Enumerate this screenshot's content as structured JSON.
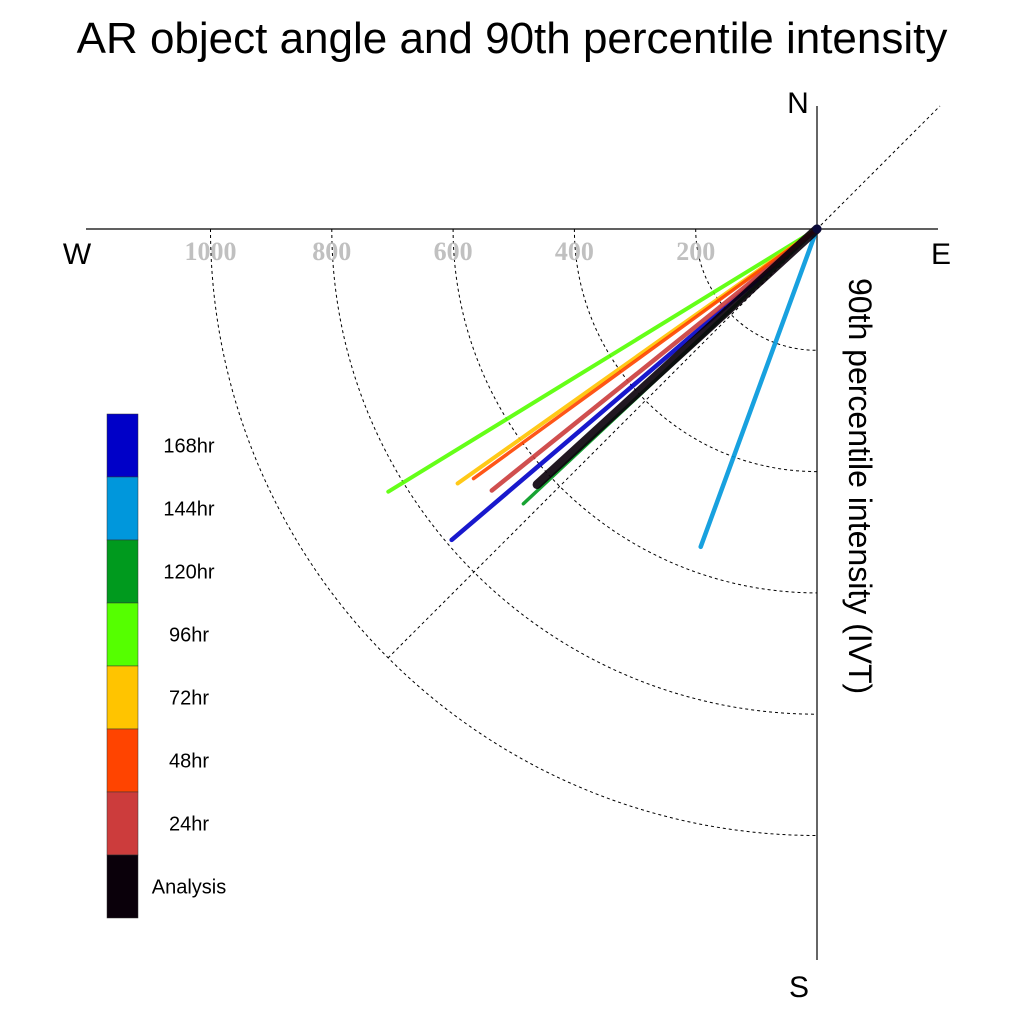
{
  "chart_data": {
    "type": "polar-vector",
    "title": "AR object angle and 90th percentile intensity",
    "ylabel": "90th percentile intensity (IVT)",
    "directions": {
      "n": "N",
      "s": "S",
      "e": "E",
      "w": "W"
    },
    "radial_ticks": [
      "200",
      "400",
      "600",
      "800",
      "1000"
    ],
    "radial_values": [
      200,
      400,
      600,
      800,
      1000
    ],
    "rmax": 1000,
    "grid": true,
    "series": [
      {
        "name": "168hr",
        "color": "#0000c8",
        "angle_deg_from_south": 49.6,
        "intensity": 791,
        "width": 4.5
      },
      {
        "name": "144hr",
        "color": "#0097dc",
        "angle_deg_from_south": 20.1,
        "intensity": 558,
        "width": 4.5
      },
      {
        "name": "120hr",
        "color": "#009a1e",
        "angle_deg_from_south": 46.9,
        "intensity": 663,
        "width": 3.5
      },
      {
        "name": "96hr",
        "color": "#55ff00",
        "angle_deg_from_south": 58.5,
        "intensity": 829,
        "width": 4
      },
      {
        "name": "72hr",
        "color": "#ffc400",
        "angle_deg_from_south": 54.7,
        "intensity": 726,
        "width": 4
      },
      {
        "name": "48hr",
        "color": "#ff4400",
        "angle_deg_from_south": 54.0,
        "intensity": 700,
        "width": 3.5
      },
      {
        "name": "24hr",
        "color": "#cc3c3c",
        "angle_deg_from_south": 51.2,
        "intensity": 688,
        "width": 4.5
      },
      {
        "name": "Analysis",
        "color": "#0a000a",
        "angle_deg_from_south": 47.6,
        "intensity": 625,
        "width": 9
      }
    ],
    "legend_order": [
      "168hr",
      "144hr",
      "120hr",
      "96hr",
      "72hr",
      "48hr",
      "24hr",
      "Analysis"
    ],
    "legend_placement": "left"
  }
}
